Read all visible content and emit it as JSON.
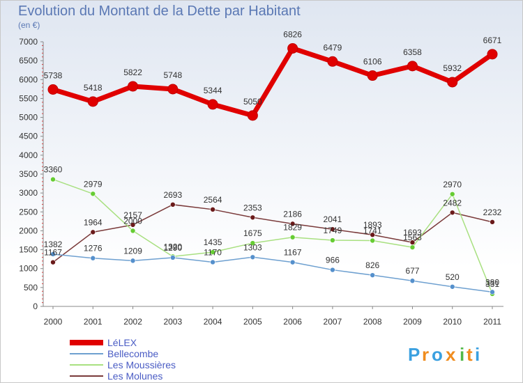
{
  "chart_data": {
    "type": "line",
    "title": "Evolution du Montant de la Dette par Habitant",
    "subtitle": "(en €)",
    "x": [
      "2000",
      "2001",
      "2002",
      "2003",
      "2004",
      "2005",
      "2006",
      "2007",
      "2008",
      "2009",
      "2010",
      "2011"
    ],
    "ylim": [
      0,
      7000
    ],
    "yticks": [
      0,
      500,
      1000,
      1500,
      2000,
      2500,
      3000,
      3500,
      4000,
      4500,
      5000,
      5500,
      6000,
      6500,
      7000
    ],
    "grid": false,
    "legend_position": "bottom-left",
    "series": [
      {
        "name": "LéLEX",
        "color": "#e00000",
        "marker": "#e00000",
        "values": [
          5738,
          5418,
          5822,
          5748,
          5344,
          5050,
          6826,
          6479,
          6106,
          6358,
          5932,
          6671
        ]
      },
      {
        "name": "Bellecombe",
        "color": "#6ea0d0",
        "marker": "#5590cc",
        "values": [
          1382,
          1276,
          1209,
          1290,
          1170,
          1303,
          1167,
          966,
          826,
          677,
          520,
          380
        ]
      },
      {
        "name": "Les Moussières",
        "color": "#a8e080",
        "marker": "#66cc33",
        "values": [
          3360,
          2979,
          2000,
          1320,
          1435,
          1675,
          1829,
          1749,
          1741,
          1563,
          2970,
          331
        ]
      },
      {
        "name": "Les Molunes",
        "color": "#7a3a3a",
        "marker": "#6a1a1a",
        "values": [
          1167,
          1964,
          2157,
          2693,
          2564,
          2353,
          2186,
          2041,
          1893,
          1693,
          2482,
          2232
        ]
      }
    ],
    "data_labels": [
      [
        "5738",
        "5418",
        "5822",
        "5748",
        "5344",
        "5050",
        "6826",
        "6479",
        "6106",
        "6358",
        "5932",
        "6671"
      ],
      [
        "1382",
        "1276",
        "1209",
        "1290",
        "1170",
        "1303",
        "1167",
        "966",
        "826",
        "677",
        "520",
        "380"
      ],
      [
        "3360",
        "2979",
        "2000",
        "1320",
        "1435",
        "1675",
        "1829",
        "1749",
        "1741",
        "1563",
        "2970",
        "331"
      ],
      [
        "1167",
        "1964",
        "2157",
        "2693",
        "2564",
        "2353",
        "2186",
        "2041",
        "1893",
        "1693",
        "2482",
        "2232"
      ]
    ]
  },
  "brand": {
    "text": "Proxiti",
    "letters": [
      "P",
      "r",
      "o",
      "x",
      "i",
      "t",
      "i"
    ],
    "colors": [
      "#3aa0e0",
      "#f08c1e",
      "#3aa0e0",
      "#f08c1e",
      "#50b848",
      "#f08c1e",
      "#3aa0e0"
    ]
  }
}
